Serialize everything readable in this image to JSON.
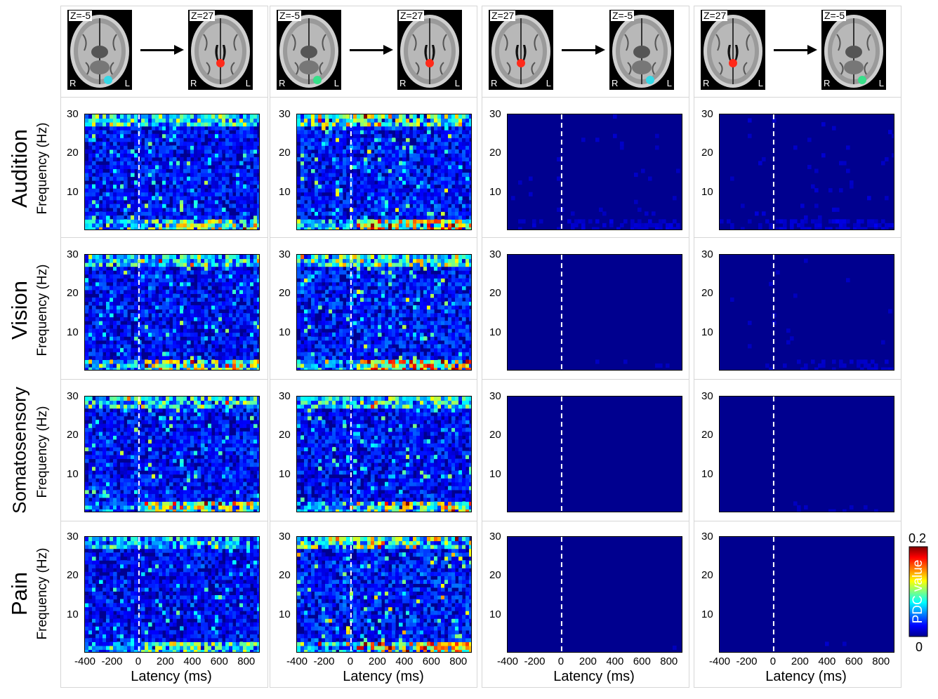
{
  "rows": [
    "Audition",
    "Vision",
    "Somatosensory",
    "Pain"
  ],
  "columns": [
    {
      "from_z": "Z=-5",
      "to_z": "Z=27",
      "from_dot": "#36d8e6",
      "to_dot": "#ff2a1a"
    },
    {
      "from_z": "Z=-5",
      "to_z": "Z=27",
      "from_dot": "#38e08a",
      "to_dot": "#ff2a1a"
    },
    {
      "from_z": "Z=27",
      "to_z": "Z=-5",
      "from_dot": "#ff2a1a",
      "to_dot": "#36d8e6"
    },
    {
      "from_z": "Z=27",
      "to_z": "Z=-5",
      "from_dot": "#ff2a1a",
      "to_dot": "#38e08a"
    }
  ],
  "brain_labels": {
    "right": "R",
    "left": "L"
  },
  "colorbar": {
    "title": "PDC value",
    "max": "0.2",
    "min": "0",
    "colors": [
      "#00008f",
      "#0000ff",
      "#00ffff",
      "#ffff00",
      "#ff0000",
      "#800000"
    ]
  },
  "chart_data": {
    "type": "heatmap",
    "xlabel": "Latency (ms)",
    "ylabel": "Frequency (Hz)",
    "xlim": [
      -400,
      900
    ],
    "ylim": [
      0,
      30
    ],
    "x_ticks": [
      "-400",
      "-200",
      "0",
      "200",
      "400",
      "600",
      "800"
    ],
    "y_ticks": [
      "10",
      "20",
      "30"
    ],
    "stimulus_onset_ms": 0,
    "color_range": [
      0,
      0.2
    ],
    "panel_intensity": [
      [
        0.55,
        0.6,
        0.2,
        0.22
      ],
      [
        0.55,
        0.6,
        0.15,
        0.18
      ],
      [
        0.55,
        0.55,
        0.12,
        0.15
      ],
      [
        0.5,
        0.62,
        0.13,
        0.14
      ]
    ]
  }
}
